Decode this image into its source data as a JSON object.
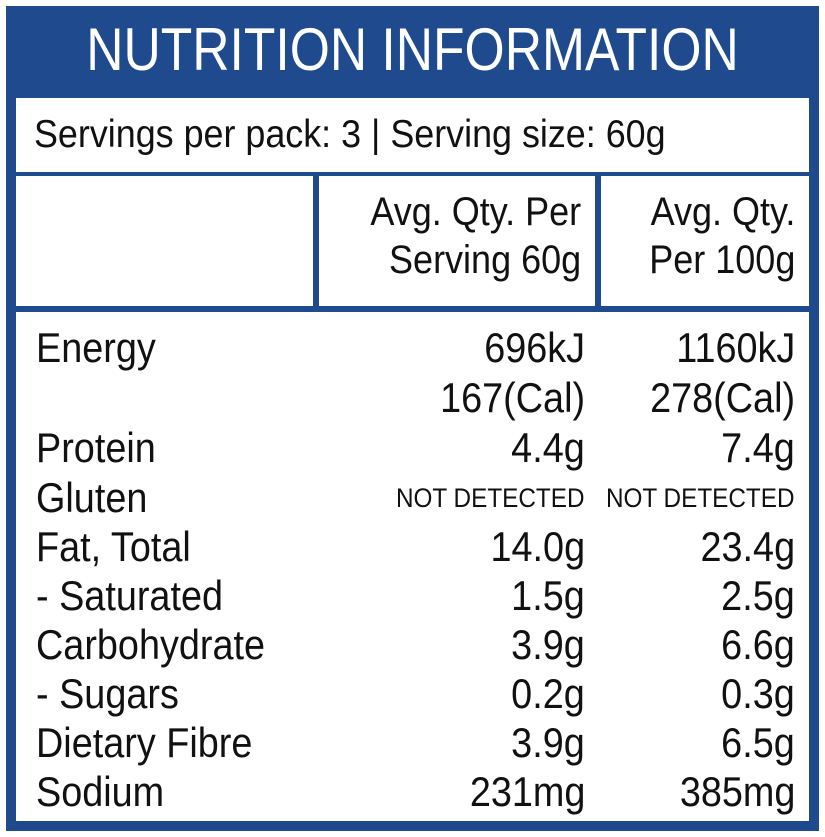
{
  "title": "NUTRITION INFORMATION",
  "servings": "Servings per pack: 3 | Serving size: 60g",
  "headers": {
    "col1_line1": "Avg. Qty. Per",
    "col1_line2": "Serving 60g",
    "col2_line1": "Avg. Qty.",
    "col2_line2": "Per 100g"
  },
  "rows": [
    {
      "label": "Energy",
      "per_serving": "696kJ",
      "per_100g": "1160kJ"
    },
    {
      "label": "",
      "per_serving": "167(Cal)",
      "per_100g": "278(Cal)"
    },
    {
      "label": "Protein",
      "per_serving": "4.4g",
      "per_100g": "7.4g"
    },
    {
      "label": "Gluten",
      "per_serving": "NOT DETECTED",
      "per_100g": "NOT DETECTED"
    },
    {
      "label": "Fat, Total",
      "per_serving": "14.0g",
      "per_100g": "23.4g"
    },
    {
      "label": "- Saturated",
      "per_serving": "1.5g",
      "per_100g": "2.5g"
    },
    {
      "label": "Carbohydrate",
      "per_serving": "3.9g",
      "per_100g": "6.6g"
    },
    {
      "label": "- Sugars",
      "per_serving": "0.2g",
      "per_100g": "0.3g"
    },
    {
      "label": "Dietary Fibre",
      "per_serving": "3.9g",
      "per_100g": "6.5g"
    },
    {
      "label": "Sodium",
      "per_serving": "231mg",
      "per_100g": "385mg"
    }
  ],
  "colors": {
    "border": "#1f4b8e",
    "title_text": "#ffffff",
    "text": "#111111"
  }
}
